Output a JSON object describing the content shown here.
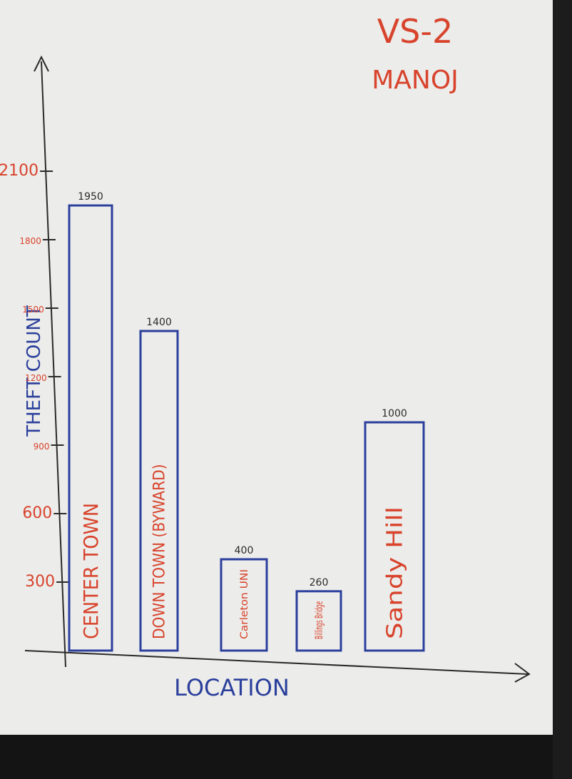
{
  "heading": {
    "line1": "VS-2",
    "line2": "MANOJ"
  },
  "chart_data": {
    "type": "bar",
    "title": "",
    "xlabel": "LOCATION",
    "ylabel": "THEFT COUNT",
    "ylim": [
      0,
      2100
    ],
    "yticks": [
      "300",
      "600",
      "900",
      "1200",
      "1500",
      "1800",
      "2100"
    ],
    "categories": [
      "CENTER TOWN",
      "DOWN TOWN (BYWARD)",
      "Carleton UNI",
      "Billings Bridge",
      "Sandy Hill"
    ],
    "values": [
      1950,
      1400,
      400,
      260,
      1000
    ],
    "value_labels": [
      "1950",
      "1400",
      "400",
      "260",
      "1000"
    ],
    "grid": false,
    "colors": {
      "bars": "#2b3f9c",
      "category_text": "#d8432c",
      "axis_text": "#d8432c",
      "axis_title": "#2b3f9c",
      "xlabel": "#2b3f9c"
    }
  }
}
